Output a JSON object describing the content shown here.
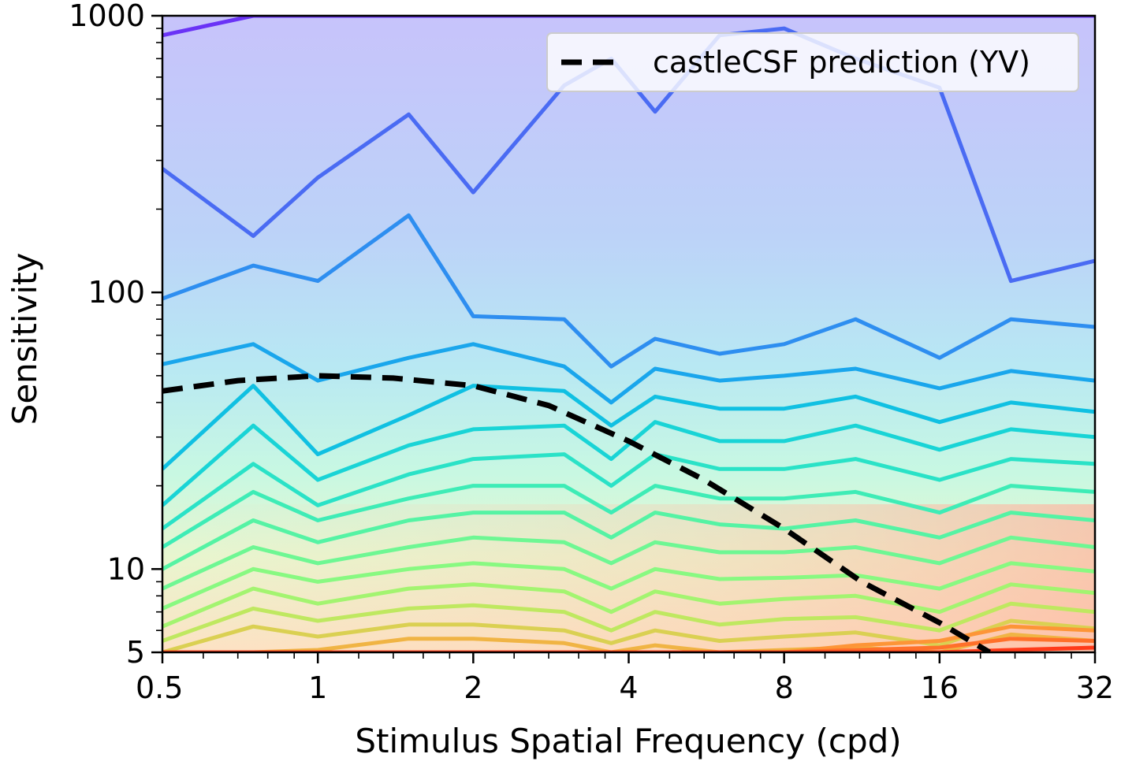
{
  "chart_data": {
    "type": "contour",
    "xlabel": "Stimulus Spatial Frequency (cpd)",
    "ylabel": "Sensitivity",
    "x_scale": "log",
    "y_scale": "log",
    "xlim": [
      0.5,
      32
    ],
    "ylim": [
      5,
      1000
    ],
    "x_ticks": [
      0.5,
      1,
      2,
      4,
      8,
      16,
      32
    ],
    "x_tick_labels": [
      "0.5",
      "1",
      "2",
      "4",
      "8",
      "16",
      "32"
    ],
    "y_ticks": [
      5,
      10,
      100,
      1000
    ],
    "y_tick_labels": [
      "5",
      "10",
      "100",
      "1000"
    ],
    "grid": false,
    "legend": {
      "position": "top-right",
      "entries": [
        {
          "label": "castleCSF prediction (YV)",
          "style": "dashed",
          "color": "#000000"
        }
      ]
    },
    "colormap": "rainbow",
    "prediction_series": {
      "name": "castleCSF prediction (YV)",
      "x": [
        0.5,
        0.7,
        1.0,
        1.4,
        2.0,
        2.8,
        4.0,
        5.6,
        8.0,
        11.3,
        16.0,
        20.0
      ],
      "y": [
        44,
        48,
        50,
        49,
        46,
        39,
        29,
        21,
        14,
        9.0,
        6.4,
        5.0
      ]
    },
    "contour_x": [
      0.5,
      0.75,
      1.0,
      1.5,
      2.0,
      3.0,
      3.7,
      4.5,
      6.0,
      8.0,
      11.0,
      16.0,
      22.0,
      32.0
    ],
    "contour_levels": [
      {
        "color": "#6a33f6",
        "y": [
          850,
          1000,
          1000,
          1000,
          1000,
          1000,
          1000,
          1000,
          1000,
          1000,
          1000,
          1000,
          1000,
          1000
        ]
      },
      {
        "color": "#4a6bf3",
        "y": [
          280,
          160,
          260,
          440,
          230,
          560,
          700,
          450,
          850,
          900,
          700,
          550,
          110,
          130
        ]
      },
      {
        "color": "#2e8ef0",
        "y": [
          95,
          125,
          110,
          190,
          82,
          80,
          54,
          68,
          60,
          65,
          80,
          58,
          80,
          75
        ]
      },
      {
        "color": "#1aa6ec",
        "y": [
          55,
          65,
          48,
          58,
          65,
          54,
          40,
          53,
          48,
          50,
          53,
          45,
          52,
          48
        ]
      },
      {
        "color": "#10c0e2",
        "y": [
          23,
          46,
          26,
          36,
          46,
          44,
          33,
          42,
          38,
          38,
          42,
          34,
          40,
          37
        ]
      },
      {
        "color": "#19d4d6",
        "y": [
          17,
          33,
          21,
          28,
          32,
          33,
          25,
          34,
          29,
          29,
          33,
          27,
          32,
          30
        ]
      },
      {
        "color": "#2ae2c7",
        "y": [
          14,
          24,
          17,
          22,
          25,
          26,
          20,
          26,
          23,
          23,
          25,
          21,
          25,
          24
        ]
      },
      {
        "color": "#3eecb6",
        "y": [
          12,
          19,
          15,
          18,
          20,
          20,
          16,
          20,
          18,
          18,
          19,
          16,
          20,
          19
        ]
      },
      {
        "color": "#55f3a4",
        "y": [
          10,
          15,
          12.5,
          15,
          16,
          16,
          13,
          16,
          14.5,
          14,
          15,
          13,
          16,
          15
        ]
      },
      {
        "color": "#6ef793",
        "y": [
          8.5,
          12,
          10.5,
          12,
          13,
          12.5,
          10.5,
          12.5,
          11.5,
          11.5,
          12,
          10.5,
          13,
          12
        ]
      },
      {
        "color": "#88f981",
        "y": [
          7.2,
          10,
          9,
          10,
          10.5,
          10,
          8.5,
          10,
          9.2,
          9.3,
          9.5,
          8.5,
          10.5,
          9.8
        ]
      },
      {
        "color": "#a3f470",
        "y": [
          6.2,
          8.5,
          7.5,
          8.5,
          8.8,
          8.3,
          7,
          8.3,
          7.5,
          7.8,
          8,
          7,
          8.8,
          8.2
        ]
      },
      {
        "color": "#bfe860",
        "y": [
          5.5,
          7.2,
          6.5,
          7.2,
          7.4,
          7,
          6,
          7,
          6.3,
          6.6,
          6.7,
          6,
          7.5,
          7
        ]
      },
      {
        "color": "#dad052",
        "y": [
          5,
          6.2,
          5.7,
          6.3,
          6.3,
          6,
          5.4,
          6,
          5.5,
          5.7,
          5.9,
          5.3,
          6.5,
          6.1
        ]
      },
      {
        "color": "#f0b444",
        "y": [
          5,
          5,
          5.1,
          5.6,
          5.6,
          5.4,
          5,
          5.3,
          5,
          5.1,
          5.2,
          5,
          5.8,
          5.5
        ]
      },
      {
        "color": "#fd9537",
        "y": [
          5,
          5,
          5,
          5,
          5,
          5,
          5,
          5,
          5,
          5,
          5.3,
          5.5,
          6.2,
          6.0
        ]
      },
      {
        "color": "#ff702a",
        "y": [
          5,
          5,
          5,
          5,
          5,
          5,
          5,
          5,
          5,
          5,
          5.1,
          5.2,
          5.6,
          5.5
        ]
      },
      {
        "color": "#ff3b1a",
        "y": [
          5,
          5,
          5,
          5,
          5,
          5,
          5,
          5,
          5,
          5,
          5,
          5,
          5.1,
          5.2
        ]
      }
    ]
  }
}
